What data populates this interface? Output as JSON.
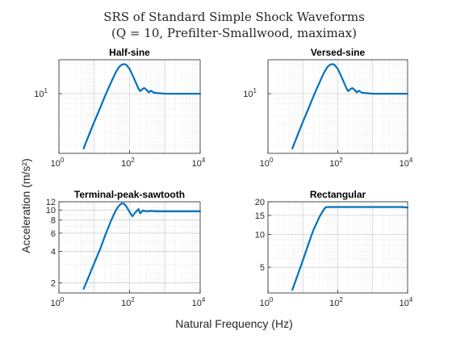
{
  "figure": {
    "title_line1": "SRS of Standard Simple Shock Waveforms",
    "title_line2": "(Q = 10, Prefilter-Smallwood, maximax)",
    "xlabel": "Natural Frequency (Hz)",
    "ylabel": "Acceleration  (m/s²)"
  },
  "colors": {
    "line": "#0072BD",
    "axes": "#262626",
    "grid": "#cccccc",
    "background": "#ffffff"
  },
  "chart_data": [
    {
      "type": "line",
      "title": "Half-sine",
      "xscale": "log",
      "yscale": "log",
      "xlim": [
        1,
        10000
      ],
      "ylim": [
        2.5,
        22
      ],
      "x_ticks": [
        1,
        100,
        10000
      ],
      "x_tick_labels": [
        {
          "base": "10",
          "exp": "0"
        },
        {
          "base": "10",
          "exp": "2"
        },
        {
          "base": "10",
          "exp": "4"
        }
      ],
      "y_ticks": [
        10
      ],
      "y_tick_labels": [
        {
          "base": "10",
          "exp": "1"
        }
      ],
      "grid": true,
      "series": [
        {
          "x": [
            5,
            7,
            10,
            15,
            20,
            30,
            40,
            50,
            60,
            70,
            80,
            100,
            120,
            150,
            180,
            200,
            230,
            260,
            300,
            350,
            400,
            500,
            700,
            1000,
            2000,
            5000,
            10000
          ],
          "y": [
            2.8,
            3.8,
            5.2,
            7.3,
            9.4,
            13.0,
            16.2,
            18.5,
            19.6,
            19.9,
            19.6,
            17.8,
            15.5,
            13.0,
            11.2,
            10.6,
            11.1,
            11.4,
            11.0,
            10.3,
            10.7,
            10.2,
            10.1,
            10.0,
            10.0,
            10.0,
            10.0
          ]
        }
      ]
    },
    {
      "type": "line",
      "title": "Versed-sine",
      "xscale": "log",
      "yscale": "log",
      "xlim": [
        1,
        10000
      ],
      "ylim": [
        2.5,
        22
      ],
      "x_ticks": [
        1,
        100,
        10000
      ],
      "x_tick_labels": [
        {
          "base": "10",
          "exp": "0"
        },
        {
          "base": "10",
          "exp": "2"
        },
        {
          "base": "10",
          "exp": "4"
        }
      ],
      "y_ticks": [
        10
      ],
      "y_tick_labels": [
        {
          "base": "10",
          "exp": "1"
        }
      ],
      "grid": true,
      "series": [
        {
          "x": [
            5,
            7,
            10,
            15,
            20,
            30,
            40,
            50,
            60,
            70,
            80,
            100,
            120,
            150,
            180,
            200,
            230,
            260,
            300,
            350,
            400,
            500,
            700,
            1000,
            2000,
            5000,
            10000
          ],
          "y": [
            2.8,
            3.8,
            5.2,
            7.3,
            9.4,
            13.0,
            16.2,
            18.5,
            19.6,
            19.9,
            19.6,
            17.8,
            15.5,
            13.0,
            11.2,
            10.6,
            11.1,
            11.4,
            11.0,
            10.3,
            10.7,
            10.2,
            10.1,
            10.0,
            10.0,
            10.0,
            10.0
          ]
        }
      ]
    },
    {
      "type": "line",
      "title": "Terminal-peak-sawtooth",
      "xscale": "log",
      "yscale": "log",
      "xlim": [
        1,
        10000
      ],
      "ylim": [
        1.6,
        12
      ],
      "x_ticks": [
        1,
        100,
        10000
      ],
      "x_tick_labels": [
        {
          "base": "10",
          "exp": "0"
        },
        {
          "base": "10",
          "exp": "2"
        },
        {
          "base": "10",
          "exp": "4"
        }
      ],
      "y_ticks": [
        2,
        4,
        6,
        8,
        10,
        12
      ],
      "y_tick_labels": [
        "2",
        "4",
        "6",
        "8",
        "10",
        "12"
      ],
      "grid": true,
      "series": [
        {
          "x": [
            5,
            7,
            10,
            15,
            20,
            30,
            40,
            50,
            60,
            70,
            80,
            100,
            120,
            150,
            180,
            200,
            240,
            300,
            400,
            600,
            1000,
            3000,
            10000
          ],
          "y": [
            1.75,
            2.3,
            3.1,
            4.3,
            5.6,
            7.9,
            9.8,
            11.0,
            11.6,
            11.5,
            10.9,
            9.6,
            8.7,
            9.6,
            10.2,
            9.3,
            9.9,
            9.7,
            9.8,
            9.7,
            9.7,
            9.7,
            9.7
          ]
        }
      ]
    },
    {
      "type": "line",
      "title": "Rectangular",
      "xscale": "log",
      "yscale": "log",
      "xlim": [
        1,
        10000
      ],
      "ylim": [
        2.9,
        20
      ],
      "x_ticks": [
        1,
        100,
        10000
      ],
      "x_tick_labels": [
        {
          "base": "10",
          "exp": "0"
        },
        {
          "base": "10",
          "exp": "2"
        },
        {
          "base": "10",
          "exp": "4"
        }
      ],
      "y_ticks": [
        5,
        10,
        15,
        20
      ],
      "y_tick_labels": [
        "5",
        "10",
        "15",
        "20"
      ],
      "grid": true,
      "series": [
        {
          "x": [
            5,
            7,
            10,
            15,
            20,
            30,
            40,
            45,
            50,
            60,
            80,
            100,
            200,
            500,
            1000,
            3000,
            7000,
            10000
          ],
          "y": [
            3.1,
            4.2,
            5.8,
            8.5,
            11.0,
            14.6,
            17.0,
            17.8,
            17.9,
            17.9,
            17.9,
            17.9,
            17.9,
            17.9,
            17.9,
            17.9,
            17.9,
            17.7
          ]
        }
      ]
    }
  ]
}
